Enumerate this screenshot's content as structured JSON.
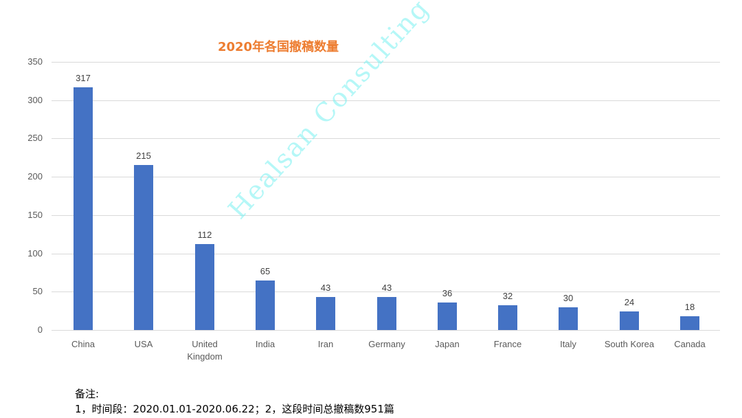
{
  "chart_data": {
    "type": "bar",
    "title": "2020年各国撤稿数量",
    "categories": [
      "China",
      "USA",
      "United Kingdom",
      "India",
      "Iran",
      "Germany",
      "Japan",
      "France",
      "Italy",
      "South Korea",
      "Canada"
    ],
    "values": [
      317,
      215,
      112,
      65,
      43,
      43,
      36,
      32,
      30,
      24,
      18
    ],
    "xlabel": "",
    "ylabel": "",
    "ylim": [
      0,
      350
    ],
    "yticks": [
      0,
      50,
      100,
      150,
      200,
      250,
      300,
      350
    ],
    "grid": true,
    "legend": "none",
    "data_labels": true,
    "bar_color": "#4472C4",
    "title_color": "#ED7D31"
  },
  "title": "2020年各国撤稿数量",
  "yticks": [
    "350",
    "300",
    "250",
    "200",
    "150",
    "100",
    "50",
    "0"
  ],
  "xlabels": [
    "China",
    "USA",
    "United\nKingdom",
    "India",
    "Iran",
    "Germany",
    "Japan",
    "France",
    "Italy",
    "South Korea",
    "Canada"
  ],
  "values": [
    "317",
    "215",
    "112",
    "65",
    "43",
    "43",
    "36",
    "32",
    "30",
    "24",
    "18"
  ],
  "watermark": "Healsan Consulting",
  "notes": {
    "heading": "备注:",
    "line1": "1，时间段：2020.01.01-2020.06.22；2，这段时间总撤稿数951篇"
  }
}
